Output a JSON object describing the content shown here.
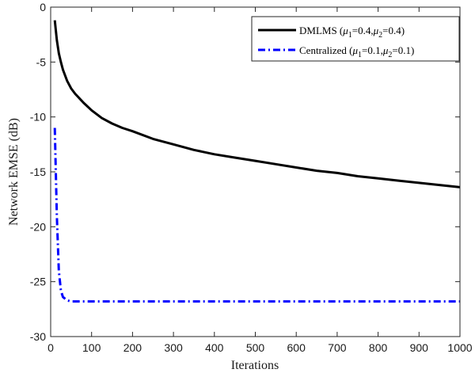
{
  "chart_data": {
    "type": "line",
    "title": "",
    "xlabel": "Iterations",
    "ylabel": "Network EMSE (dB)",
    "xlim": [
      0,
      1000
    ],
    "ylim": [
      -30,
      0
    ],
    "x_ticks": [
      0,
      100,
      200,
      300,
      400,
      500,
      600,
      700,
      800,
      900,
      1000
    ],
    "y_ticks": [
      0,
      -5,
      -10,
      -15,
      -20,
      -25,
      -30
    ],
    "grid": false,
    "legend_position": "top-right",
    "x": [
      10,
      15,
      20,
      25,
      30,
      40,
      50,
      60,
      80,
      100,
      125,
      150,
      175,
      200,
      250,
      300,
      350,
      400,
      450,
      500,
      550,
      600,
      650,
      700,
      750,
      800,
      850,
      900,
      950,
      1000
    ],
    "series": [
      {
        "name": "DMLMS",
        "legend_params": [
          "μ",
          "1",
          "=0.4,",
          "μ",
          "2",
          "=0.4"
        ],
        "color": "#000000",
        "style": "solid",
        "values": [
          -1.2,
          -3.0,
          -4.2,
          -5.0,
          -5.7,
          -6.7,
          -7.4,
          -7.9,
          -8.7,
          -9.4,
          -10.1,
          -10.6,
          -11.0,
          -11.3,
          -12.0,
          -12.5,
          -13.0,
          -13.4,
          -13.7,
          -14.0,
          -14.3,
          -14.6,
          -14.9,
          -15.1,
          -15.4,
          -15.6,
          -15.8,
          -16.0,
          -16.2,
          -16.4
        ]
      },
      {
        "name": "Centralized",
        "legend_params": [
          "μ",
          "1",
          "=0.1,",
          "μ",
          "2",
          "=0.1"
        ],
        "color": "#0000ff",
        "style": "dash-dot",
        "values": [
          -11.0,
          -19.0,
          -24.0,
          -25.8,
          -26.4,
          -26.7,
          -26.8,
          -26.8,
          -26.8,
          -26.8,
          -26.8,
          -26.8,
          -26.8,
          -26.8,
          -26.8,
          -26.8,
          -26.8,
          -26.8,
          -26.8,
          -26.8,
          -26.8,
          -26.8,
          -26.8,
          -26.8,
          -26.8,
          -26.8,
          -26.8,
          -26.8,
          -26.8,
          -26.8
        ]
      }
    ]
  }
}
